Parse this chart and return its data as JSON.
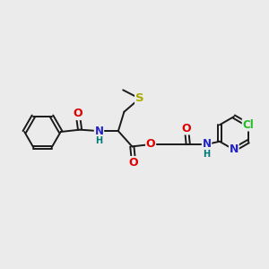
{
  "bg_color": "#ebebeb",
  "bond_color": "#1a1a1a",
  "bond_lw": 1.4,
  "atom_colors": {
    "O": "#dd0000",
    "N": "#2222cc",
    "S": "#aaaa00",
    "Cl": "#22bb22",
    "H": "#007777"
  },
  "fs": 8.5,
  "fig_w": 3.0,
  "fig_h": 3.0,
  "dpi": 100
}
